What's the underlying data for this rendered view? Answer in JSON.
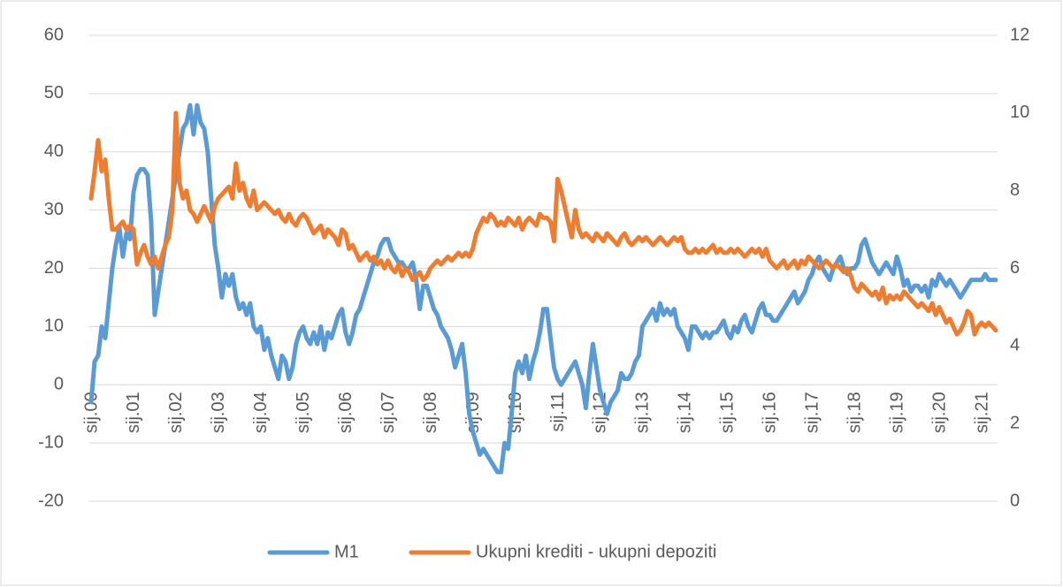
{
  "chart_data": {
    "type": "line",
    "categories": [
      "sij.00",
      null,
      null,
      null,
      null,
      null,
      null,
      null,
      null,
      null,
      null,
      null,
      "sij.01",
      null,
      null,
      null,
      null,
      null,
      null,
      null,
      null,
      null,
      null,
      null,
      "sij.02",
      null,
      null,
      null,
      null,
      null,
      null,
      null,
      null,
      null,
      null,
      null,
      "sij.03",
      null,
      null,
      null,
      null,
      null,
      null,
      null,
      null,
      null,
      null,
      null,
      "sij.04",
      null,
      null,
      null,
      null,
      null,
      null,
      null,
      null,
      null,
      null,
      null,
      "sij.05",
      null,
      null,
      null,
      null,
      null,
      null,
      null,
      null,
      null,
      null,
      null,
      "sij.06",
      null,
      null,
      null,
      null,
      null,
      null,
      null,
      null,
      null,
      null,
      null,
      "sij.07",
      null,
      null,
      null,
      null,
      null,
      null,
      null,
      null,
      null,
      null,
      null,
      "sij.08",
      null,
      null,
      null,
      null,
      null,
      null,
      null,
      null,
      null,
      null,
      null,
      "sij.09",
      null,
      null,
      null,
      null,
      null,
      null,
      null,
      null,
      null,
      null,
      null,
      "sij.10",
      null,
      null,
      null,
      null,
      null,
      null,
      null,
      null,
      null,
      null,
      null,
      "sij.11",
      null,
      null,
      null,
      null,
      null,
      null,
      null,
      null,
      null,
      null,
      null,
      "sij.12",
      null,
      null,
      null,
      null,
      null,
      null,
      null,
      null,
      null,
      null,
      null,
      "sij.13",
      null,
      null,
      null,
      null,
      null,
      null,
      null,
      null,
      null,
      null,
      null,
      "sij.14",
      null,
      null,
      null,
      null,
      null,
      null,
      null,
      null,
      null,
      null,
      null,
      "sij.15",
      null,
      null,
      null,
      null,
      null,
      null,
      null,
      null,
      null,
      null,
      null,
      "sij.16",
      null,
      null,
      null,
      null,
      null,
      null,
      null,
      null,
      null,
      null,
      null,
      "sij.17",
      null,
      null,
      null,
      null,
      null,
      null,
      null,
      null,
      null,
      null,
      null,
      "sij.18",
      null,
      null,
      null,
      null,
      null,
      null,
      null,
      null,
      null,
      null,
      null,
      "sij.19",
      null,
      null,
      null,
      null,
      null,
      null,
      null,
      null,
      null,
      null,
      null,
      "sij.20",
      null,
      null,
      null,
      null,
      null,
      null,
      null,
      null,
      null,
      null,
      null,
      "sij.21",
      null,
      null,
      null,
      null
    ],
    "series": [
      {
        "name": "M1",
        "color": "#5b9bd5",
        "values": [
          -3,
          4,
          5,
          10,
          8,
          14,
          20,
          24,
          27,
          22,
          26,
          25,
          33,
          36,
          37,
          37,
          36,
          28,
          12,
          16,
          20,
          24,
          28,
          32,
          36,
          40,
          44,
          45,
          48,
          43,
          48,
          45,
          44,
          40,
          32,
          24,
          20,
          15,
          19,
          17,
          19,
          15,
          13,
          14,
          12,
          14,
          10,
          9,
          10,
          6,
          8,
          5,
          3,
          1,
          5,
          4,
          1,
          3,
          7,
          9,
          10,
          8,
          7,
          9,
          7,
          10,
          6,
          9,
          8,
          10,
          12,
          13,
          9,
          7,
          9,
          12,
          13,
          15,
          17,
          19,
          21,
          22,
          24,
          25,
          25,
          23,
          22,
          21,
          21,
          20,
          20,
          21,
          18,
          13,
          17,
          17,
          15,
          13,
          12,
          10,
          9,
          8,
          6,
          3,
          5,
          7,
          2,
          -5,
          -8,
          -10,
          -12,
          -11,
          -12,
          -13,
          -14,
          -15,
          -15,
          -10,
          -11,
          -5,
          2,
          4,
          2,
          5,
          1,
          4,
          6,
          9,
          13,
          13,
          8,
          3,
          1,
          0,
          1,
          2,
          3,
          4,
          2,
          0,
          -4,
          2,
          7,
          3,
          -1,
          -3,
          -5,
          -3,
          -2,
          -1,
          2,
          1,
          1,
          2,
          4,
          5,
          10,
          11,
          12,
          13,
          11,
          14,
          12,
          13,
          12,
          13,
          10,
          9,
          8,
          6,
          10,
          10,
          9,
          8,
          9,
          8,
          9,
          9,
          10,
          11,
          9,
          8,
          10,
          9,
          11,
          12,
          10,
          9,
          11,
          13,
          14,
          12,
          12,
          11,
          11,
          12,
          13,
          14,
          15,
          16,
          14,
          15,
          16,
          18,
          19,
          21,
          22,
          20,
          19,
          18,
          20,
          21,
          22,
          20,
          19,
          20,
          20,
          21,
          24,
          25,
          23,
          21,
          20,
          19,
          20,
          21,
          20,
          19,
          22,
          20,
          17,
          18,
          16,
          17,
          17,
          16,
          17,
          15,
          18,
          17,
          19,
          18,
          17,
          18,
          17,
          16,
          15,
          16,
          17,
          18,
          18,
          18,
          18,
          19,
          18,
          18,
          18
        ]
      },
      {
        "name": "Ukupni krediti - ukupni depoziti",
        "color": "#ed7d31",
        "axis": "y2",
        "values": [
          7.8,
          8.5,
          9.3,
          8.5,
          8.8,
          7.8,
          7.0,
          7.0,
          7.1,
          7.2,
          7.0,
          7.1,
          7.0,
          6.1,
          6.4,
          6.6,
          6.3,
          6.1,
          6.3,
          6.0,
          6.3,
          6.6,
          6.8,
          7.5,
          10.0,
          8.2,
          7.8,
          8.0,
          7.5,
          7.4,
          7.2,
          7.4,
          7.6,
          7.4,
          7.2,
          7.6,
          7.8,
          7.9,
          8.0,
          8.1,
          7.8,
          8.7,
          8.0,
          8.2,
          7.8,
          7.6,
          8.0,
          7.5,
          7.6,
          7.7,
          7.6,
          7.5,
          7.4,
          7.5,
          7.3,
          7.2,
          7.4,
          7.2,
          7.1,
          7.3,
          7.4,
          7.3,
          7.1,
          6.9,
          7.0,
          7.1,
          6.8,
          7.0,
          6.9,
          6.8,
          6.6,
          7.0,
          6.9,
          6.5,
          6.6,
          6.4,
          6.2,
          6.3,
          6.4,
          6.2,
          6.3,
          6.1,
          6.2,
          6.0,
          6.2,
          6.0,
          5.9,
          6.1,
          5.8,
          6.0,
          5.9,
          5.7,
          5.8,
          5.9,
          5.7,
          5.8,
          6.0,
          6.1,
          6.2,
          6.1,
          6.2,
          6.3,
          6.2,
          6.3,
          6.4,
          6.3,
          6.4,
          6.3,
          6.5,
          6.9,
          7.1,
          7.3,
          7.2,
          7.4,
          7.3,
          7.1,
          7.2,
          7.1,
          7.3,
          7.2,
          7.1,
          7.3,
          7.0,
          7.2,
          7.3,
          7.2,
          7.1,
          7.4,
          7.3,
          7.3,
          7.2,
          6.7,
          8.3,
          8.0,
          7.6,
          7.2,
          6.8,
          7.5,
          7.0,
          6.8,
          6.9,
          6.8,
          6.7,
          6.9,
          6.8,
          6.7,
          6.9,
          6.8,
          6.7,
          6.6,
          6.8,
          6.9,
          6.7,
          6.6,
          6.7,
          6.8,
          6.7,
          6.8,
          6.7,
          6.6,
          6.7,
          6.8,
          6.7,
          6.6,
          6.7,
          6.8,
          6.7,
          6.8,
          6.5,
          6.4,
          6.4,
          6.5,
          6.4,
          6.5,
          6.4,
          6.5,
          6.6,
          6.4,
          6.5,
          6.4,
          6.4,
          6.5,
          6.4,
          6.5,
          6.4,
          6.3,
          6.4,
          6.5,
          6.4,
          6.5,
          6.3,
          6.5,
          6.2,
          6.1,
          6.0,
          6.1,
          6.2,
          6.0,
          6.1,
          6.2,
          6.0,
          6.2,
          6.1,
          6.3,
          6.2,
          6.1,
          6.0,
          6.1,
          6.2,
          6.1,
          6.0,
          6.1,
          6.0,
          5.9,
          6.0,
          5.8,
          5.5,
          5.4,
          5.6,
          5.5,
          5.4,
          5.3,
          5.4,
          5.2,
          5.5,
          5.1,
          5.3,
          5.2,
          5.3,
          5.2,
          5.4,
          5.3,
          5.2,
          5.1,
          5.0,
          5.1,
          5.0,
          4.9,
          5.1,
          4.8,
          5.0,
          4.8,
          4.6,
          4.7,
          4.5,
          4.3,
          4.4,
          4.6,
          4.9,
          4.8,
          4.3,
          4.5,
          4.6,
          4.5,
          4.6,
          4.5,
          4.4
        ]
      }
    ],
    "ylim": [
      -20,
      60
    ],
    "yticks": [
      -20,
      -10,
      0,
      10,
      20,
      30,
      40,
      50,
      60
    ],
    "y2lim": [
      0,
      12
    ],
    "y2ticks": [
      0,
      2,
      4,
      6,
      8,
      10,
      12
    ],
    "grid": true,
    "legend": "bottom"
  }
}
